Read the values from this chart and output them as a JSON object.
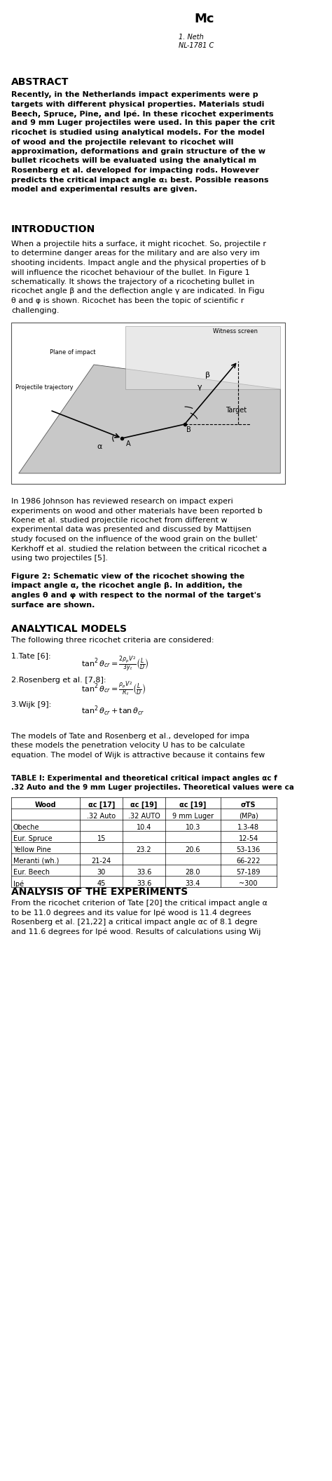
{
  "bg_color": "#ffffff",
  "title_right": "Mc",
  "affil_line1": "1. Neth",
  "affil_line2": "NL-1781 C",
  "abstract_title": "ABSTRACT",
  "abstract_text": "Recently, in the Netherlands impact experiments were p\ntargets with different physical properties. Materials studi\nBeech, Spruce, Pine, and Ipé. In these ricochet experiments\nand 9 mm Luger projectiles were used. In this paper the crit\nricochet is studied using analytical models. For the model\nof wood and the projectile relevant to ricochet will b\napproximation, deformations and grain structure of the w\nbullet ricochets will be evaluated using the analytical m\nRosenberg et al. developed for impacting rods. However\npredicts the critical impact angle α₁ best. Possible reasons\nmodel and experimental results are given.",
  "intro_title": "INTRODUCTION",
  "intro_text": "When a projectile hits a surface, it might ricochet. So, projectile r\nto determine danger areas for the military and are also very im\nshooting incidents. Impact angle and the physical properties of b\nwill influence the ricochet behaviour of the bullet. In Figure 1\nschematically. It shows the trajectory of a ricocheting bullet in\nricochet angle β and the deflection angle γ are indicated. In Figu\nθ and φ is shown. Ricochet has been the topic of scientific r\nchallenging.",
  "fig_caption": "Figure 2: Schematic view of the ricochet showing the\nimpact angle α, the ricochet angle β. In addition, the\nangles θ and φ with respect to the normal of the target's\nsurface are shown.",
  "analytical_title": "ANALYTICAL MODELS",
  "analytical_intro": "The following three ricochet criteria are considered:",
  "formula1": "tan²θₑᵣ = ²ρₚ V² / ( L₟ / D )",
  "formula1_label": "1.Tate [6]:",
  "formula1_math": "tan²θ_{cr} = \\frac{2\\rho_p V^2}{3y_t} \\left(\\frac{L}{D}\\right)",
  "formula2_label": "2.Rosenberg et al. [7,8]:",
  "formula2_math": "tan² \\theta_{cr} = \\frac{\\rho_p V^2}{R_t} \\left(\\frac{L}{D}\\right)",
  "formula3_label": "3.Wijk [9]:",
  "formula3_math": "tan² \\theta_{cr} + tan\\ \\theta_{cr}",
  "models_text": "The models of Tate and Rosenberg et al., developed for impa\nthese models the penetration velocity U has to be calculate\nequation. The model of Wijk is attractive because it contains few",
  "table_title": "TABLE I: Experimental and theoretical critical impact angles αᶜ f\n.32 Auto and the 9 mm Luger projectiles. Theoretical values were ca",
  "table_headers": [
    "Wood",
    "αc [17]",
    "αc [19]",
    "αc [19]",
    "σTS"
  ],
  "table_subheaders": [
    "",
    ".32 Auto",
    ".32 AUTO",
    "9 mm Luger",
    "(MPa)"
  ],
  "table_data": [
    [
      "Obeche",
      "",
      "10.4",
      "10.3",
      "1.3-48"
    ],
    [
      "Eur. Spruce",
      "15",
      "",
      "",
      "12-54"
    ],
    [
      "Yellow Pine",
      "",
      "23.2",
      "20.6",
      "53-136"
    ],
    [
      "Meranti (wh.)",
      "21-24",
      "",
      "",
      "66-222"
    ],
    [
      "Eur. Beech",
      "30",
      "33.6",
      "28.0",
      "57-189"
    ],
    [
      "Ipé",
      "45",
      "33.6",
      "33.4",
      "~300"
    ]
  ],
  "analysis_title": "ANALYSIS OF THE EXPERIMENTS",
  "analysis_text": "From the ricochet criterion of Tate [20] the critical impact angle α\nto be 11.0 degrees and its value for Ipé wood is 11.4 degrees\nRosenberg et al. [21,22] a critical impact angle αc of 8.1 degre\nand 11.6 degrees for Ipé wood. Results of calculations using Wij"
}
